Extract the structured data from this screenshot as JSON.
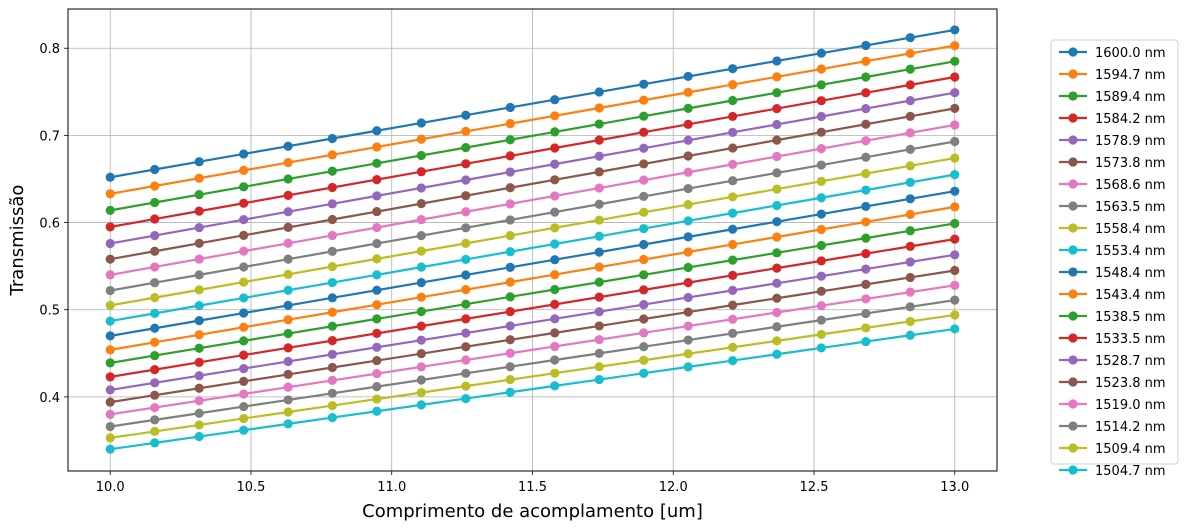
{
  "chart_data": {
    "type": "line",
    "title": "",
    "xlabel": "Comprimento de acomplamento [um]",
    "ylabel": "Transmissão",
    "xlim": [
      9.85,
      13.15
    ],
    "ylim": [
      0.315,
      0.845
    ],
    "xticks": [
      "10.0",
      "10.5",
      "11.0",
      "11.5",
      "12.0",
      "12.5",
      "13.0"
    ],
    "yticks": [
      "0.4",
      "0.5",
      "0.6",
      "0.7",
      "0.8"
    ],
    "grid": true,
    "legend_position": "right-outside",
    "x": [
      10.0,
      10.158,
      10.316,
      10.474,
      10.632,
      10.789,
      10.947,
      11.105,
      11.263,
      11.421,
      11.579,
      11.737,
      11.895,
      12.053,
      12.211,
      12.368,
      12.526,
      12.684,
      12.842,
      13.0
    ],
    "series": [
      {
        "name": "1600.0 nm",
        "start": 0.652,
        "end": 0.821,
        "color": "#1f77b4"
      },
      {
        "name": "1594.7 nm",
        "start": 0.633,
        "end": 0.803,
        "color": "#ff7f0e"
      },
      {
        "name": "1589.4 nm",
        "start": 0.614,
        "end": 0.785,
        "color": "#2ca02c"
      },
      {
        "name": "1584.2 nm",
        "start": 0.595,
        "end": 0.767,
        "color": "#d62728"
      },
      {
        "name": "1578.9 nm",
        "start": 0.576,
        "end": 0.749,
        "color": "#9467bd"
      },
      {
        "name": "1573.8 nm",
        "start": 0.558,
        "end": 0.731,
        "color": "#8c564b"
      },
      {
        "name": "1568.6 nm",
        "start": 0.54,
        "end": 0.712,
        "color": "#e377c2"
      },
      {
        "name": "1563.5 nm",
        "start": 0.522,
        "end": 0.693,
        "color": "#7f7f7f"
      },
      {
        "name": "1558.4 nm",
        "start": 0.505,
        "end": 0.674,
        "color": "#bcbd22"
      },
      {
        "name": "1553.4 nm",
        "start": 0.487,
        "end": 0.655,
        "color": "#17becf"
      },
      {
        "name": "1548.4 nm",
        "start": 0.47,
        "end": 0.636,
        "color": "#1f77b4"
      },
      {
        "name": "1543.4 nm",
        "start": 0.454,
        "end": 0.618,
        "color": "#ff7f0e"
      },
      {
        "name": "1538.5 nm",
        "start": 0.439,
        "end": 0.599,
        "color": "#2ca02c"
      },
      {
        "name": "1533.5 nm",
        "start": 0.423,
        "end": 0.581,
        "color": "#d62728"
      },
      {
        "name": "1528.7 nm",
        "start": 0.408,
        "end": 0.563,
        "color": "#9467bd"
      },
      {
        "name": "1523.8 nm",
        "start": 0.394,
        "end": 0.545,
        "color": "#8c564b"
      },
      {
        "name": "1519.0 nm",
        "start": 0.38,
        "end": 0.528,
        "color": "#e377c2"
      },
      {
        "name": "1514.2 nm",
        "start": 0.366,
        "end": 0.511,
        "color": "#7f7f7f"
      },
      {
        "name": "1509.4 nm",
        "start": 0.353,
        "end": 0.494,
        "color": "#bcbd22"
      },
      {
        "name": "1504.7 nm",
        "start": 0.34,
        "end": 0.478,
        "color": "#17becf"
      }
    ]
  }
}
